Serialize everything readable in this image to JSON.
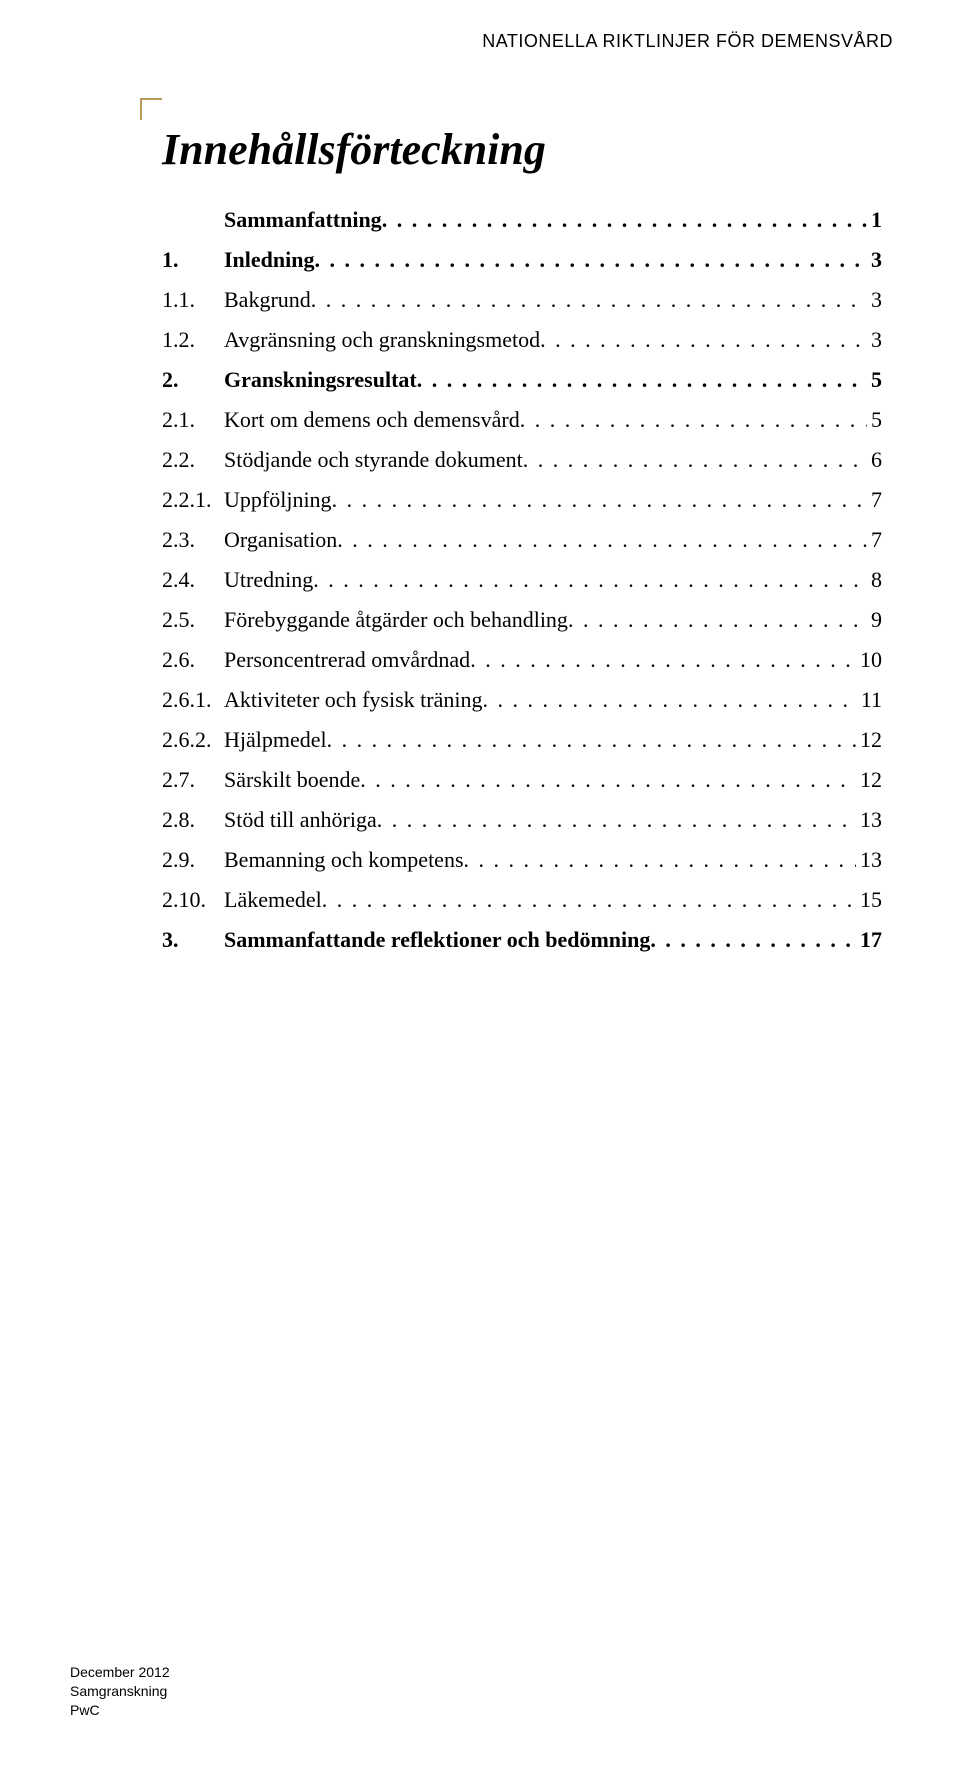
{
  "header": "NATIONELLA RIKTLINJER FÖR DEMENSVÅRD",
  "title": "Innehållsförteckning",
  "toc": [
    {
      "level": 1,
      "num": "",
      "label": "Sammanfattning",
      "page": "1"
    },
    {
      "level": 1,
      "num": "1.",
      "label": "Inledning",
      "page": "3"
    },
    {
      "level": 2,
      "num": "1.1.",
      "label": "Bakgrund",
      "page": "3"
    },
    {
      "level": 2,
      "num": "1.2.",
      "label": "Avgränsning och granskningsmetod",
      "page": "3"
    },
    {
      "level": 1,
      "num": "2.",
      "label": "Granskningsresultat",
      "page": "5"
    },
    {
      "level": 2,
      "num": "2.1.",
      "label": "Kort om demens och demensvård",
      "page": "5"
    },
    {
      "level": 2,
      "num": "2.2.",
      "label": "Stödjande och styrande dokument",
      "page": "6"
    },
    {
      "level": 2,
      "num": "2.2.1.",
      "label": "Uppföljning",
      "page": "7"
    },
    {
      "level": 2,
      "num": "2.3.",
      "label": "Organisation",
      "page": "7"
    },
    {
      "level": 2,
      "num": "2.4.",
      "label": "Utredning",
      "page": "8"
    },
    {
      "level": 2,
      "num": "2.5.",
      "label": "Förebyggande åtgärder och behandling",
      "page": "9"
    },
    {
      "level": 2,
      "num": "2.6.",
      "label": "Personcentrerad omvårdnad",
      "page": "10"
    },
    {
      "level": 3,
      "num": "2.6.1.",
      "label": "Aktiviteter och fysisk träning",
      "page": "11"
    },
    {
      "level": 3,
      "num": "2.6.2.",
      "label": "Hjälpmedel",
      "page": "12"
    },
    {
      "level": 2,
      "num": "2.7.",
      "label": "Särskilt boende",
      "page": "12"
    },
    {
      "level": 2,
      "num": "2.8.",
      "label": "Stöd till anhöriga",
      "page": "13"
    },
    {
      "level": 2,
      "num": "2.9.",
      "label": "Bemanning och kompetens",
      "page": "13"
    },
    {
      "level": 2,
      "num": "2.10.",
      "label": "Läkemedel",
      "page": "15"
    },
    {
      "level": 1,
      "num": "3.",
      "label": "Sammanfattande reflektioner och bedömning",
      "page": "17"
    }
  ],
  "footer": {
    "line1": "December 2012",
    "line2": "Samgranskning",
    "line3": "PwC"
  },
  "colors": {
    "corner": "#b89a5a",
    "text": "#000000",
    "background": "#ffffff"
  }
}
